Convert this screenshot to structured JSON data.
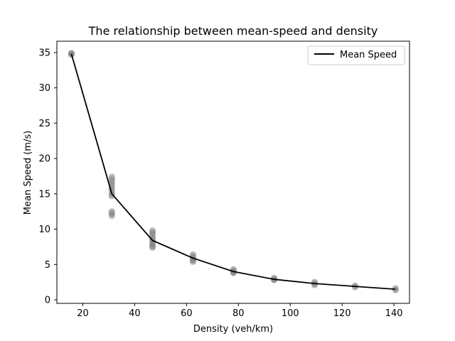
{
  "chart_data": {
    "type": "line",
    "title": "The relationship between mean-speed and density",
    "xlabel": "Density (veh/km)",
    "ylabel": "Mean Speed (m/s)",
    "xlim": [
      10,
      146
    ],
    "ylim": [
      -0.5,
      36.6
    ],
    "xticks": [
      20,
      40,
      60,
      80,
      100,
      120,
      140
    ],
    "yticks": [
      0,
      5,
      10,
      15,
      20,
      25,
      30,
      35
    ],
    "grid": false,
    "legend": {
      "placement": "top-right",
      "entries": [
        "Mean Speed"
      ]
    },
    "series": [
      {
        "name": "Mean Speed",
        "kind": "line",
        "color": "#000000",
        "x": [
          15.6,
          31.2,
          46.9,
          62.5,
          78.1,
          93.8,
          109.4,
          125.0,
          140.6
        ],
        "y": [
          34.8,
          15.0,
          8.4,
          5.9,
          4.0,
          2.9,
          2.3,
          1.9,
          1.5
        ]
      },
      {
        "kind": "scatter",
        "color": "#808080",
        "x": [
          15.6,
          15.6,
          15.6,
          31.2,
          31.2,
          31.2,
          31.2,
          31.2,
          31.2,
          31.2,
          31.2,
          31.2,
          31.2,
          31.2,
          46.9,
          46.9,
          46.9,
          46.9,
          46.9,
          46.9,
          46.9,
          46.9,
          46.9,
          62.5,
          62.5,
          62.5,
          62.5,
          62.5,
          78.1,
          78.1,
          78.1,
          78.1,
          93.8,
          93.8,
          93.8,
          109.4,
          109.4,
          109.4,
          125.0,
          125.0,
          140.6,
          140.6
        ],
        "y": [
          34.7,
          34.8,
          34.9,
          17.4,
          17.0,
          16.6,
          16.2,
          15.8,
          15.4,
          15.0,
          14.7,
          12.5,
          12.2,
          11.9,
          9.8,
          9.2,
          8.8,
          8.5,
          8.2,
          7.9,
          7.6,
          7.4,
          9.5,
          6.4,
          6.1,
          5.8,
          5.6,
          5.4,
          4.3,
          4.1,
          3.9,
          3.8,
          3.1,
          2.9,
          2.8,
          2.5,
          2.3,
          2.1,
          2.0,
          1.8,
          1.6,
          1.4
        ]
      }
    ]
  }
}
